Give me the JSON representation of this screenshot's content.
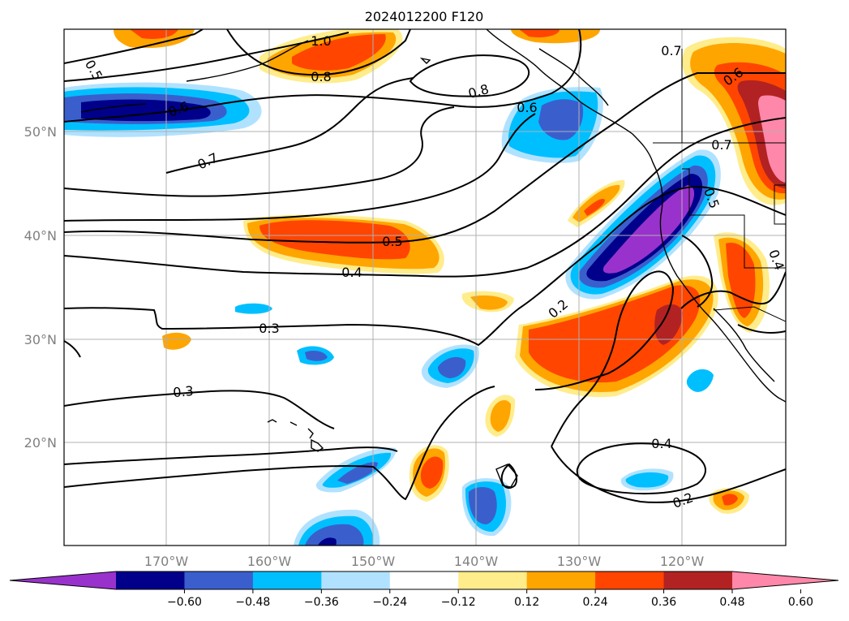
{
  "title": "2024012200 F120",
  "map": {
    "lat_labels": [
      "50°N",
      "40°N",
      "30°N",
      "20°N"
    ],
    "lon_labels": [
      "170°W",
      "160°W",
      "150°W",
      "140°W",
      "130°W",
      "120°W"
    ],
    "contour_labels": [
      "1.0",
      "0.8",
      "0.5",
      "0.6",
      "0.7",
      "0.8",
      "0.6",
      "0.7",
      "0.7",
      "0.6",
      "0.5",
      "0.4",
      "0.4",
      "0.2",
      "0.3",
      "0.5",
      "0.3",
      "0.4",
      "0.2"
    ]
  },
  "colorbar": {
    "ticks": [
      "−0.60",
      "−0.48",
      "−0.36",
      "−0.24",
      "−0.12",
      "0.12",
      "0.24",
      "0.36",
      "0.48",
      "0.60"
    ],
    "colors": [
      "#9932cc",
      "#00008b",
      "#3a5fcd",
      "#00bfff",
      "#b0e2ff",
      "#ffffff",
      "#ffec8b",
      "#ffa500",
      "#ff4500",
      "#b22222",
      "#ff88aa"
    ],
    "extend": "both"
  }
}
